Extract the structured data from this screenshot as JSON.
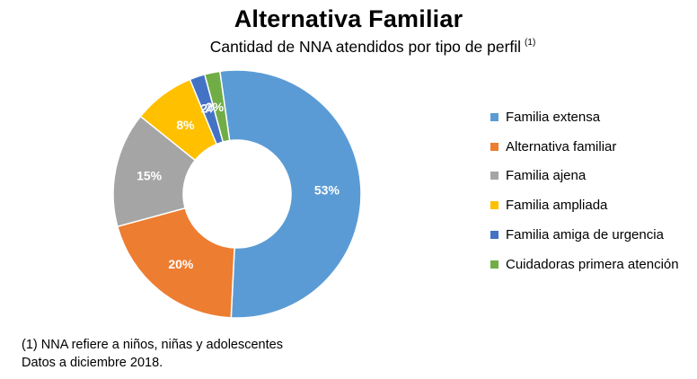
{
  "chart_data": {
    "type": "pie",
    "title": "Alternativa Familiar",
    "subtitle": "Cantidad de NNA atendidos por tipo de perfil",
    "subtitle_note": "(1)",
    "categories": [
      "Familia extensa",
      "Alternativa familiar",
      "Familia ajena",
      "Familia ampliada",
      "Familia amiga de urgencia",
      "Cuidadoras primera atención"
    ],
    "values": [
      53,
      20,
      15,
      8,
      2,
      2
    ],
    "labels": [
      "53%",
      "20%",
      "15%",
      "8%",
      "2%",
      "2%"
    ],
    "colors": [
      "#5B9BD5",
      "#ED7D31",
      "#A5A5A5",
      "#FFC000",
      "#4472C4",
      "#70AD47"
    ],
    "donut": true,
    "legend_position": "right"
  },
  "footnotes": [
    "(1) NNA refiere a niños, niñas y adolescentes",
    "Datos a diciembre 2018."
  ]
}
